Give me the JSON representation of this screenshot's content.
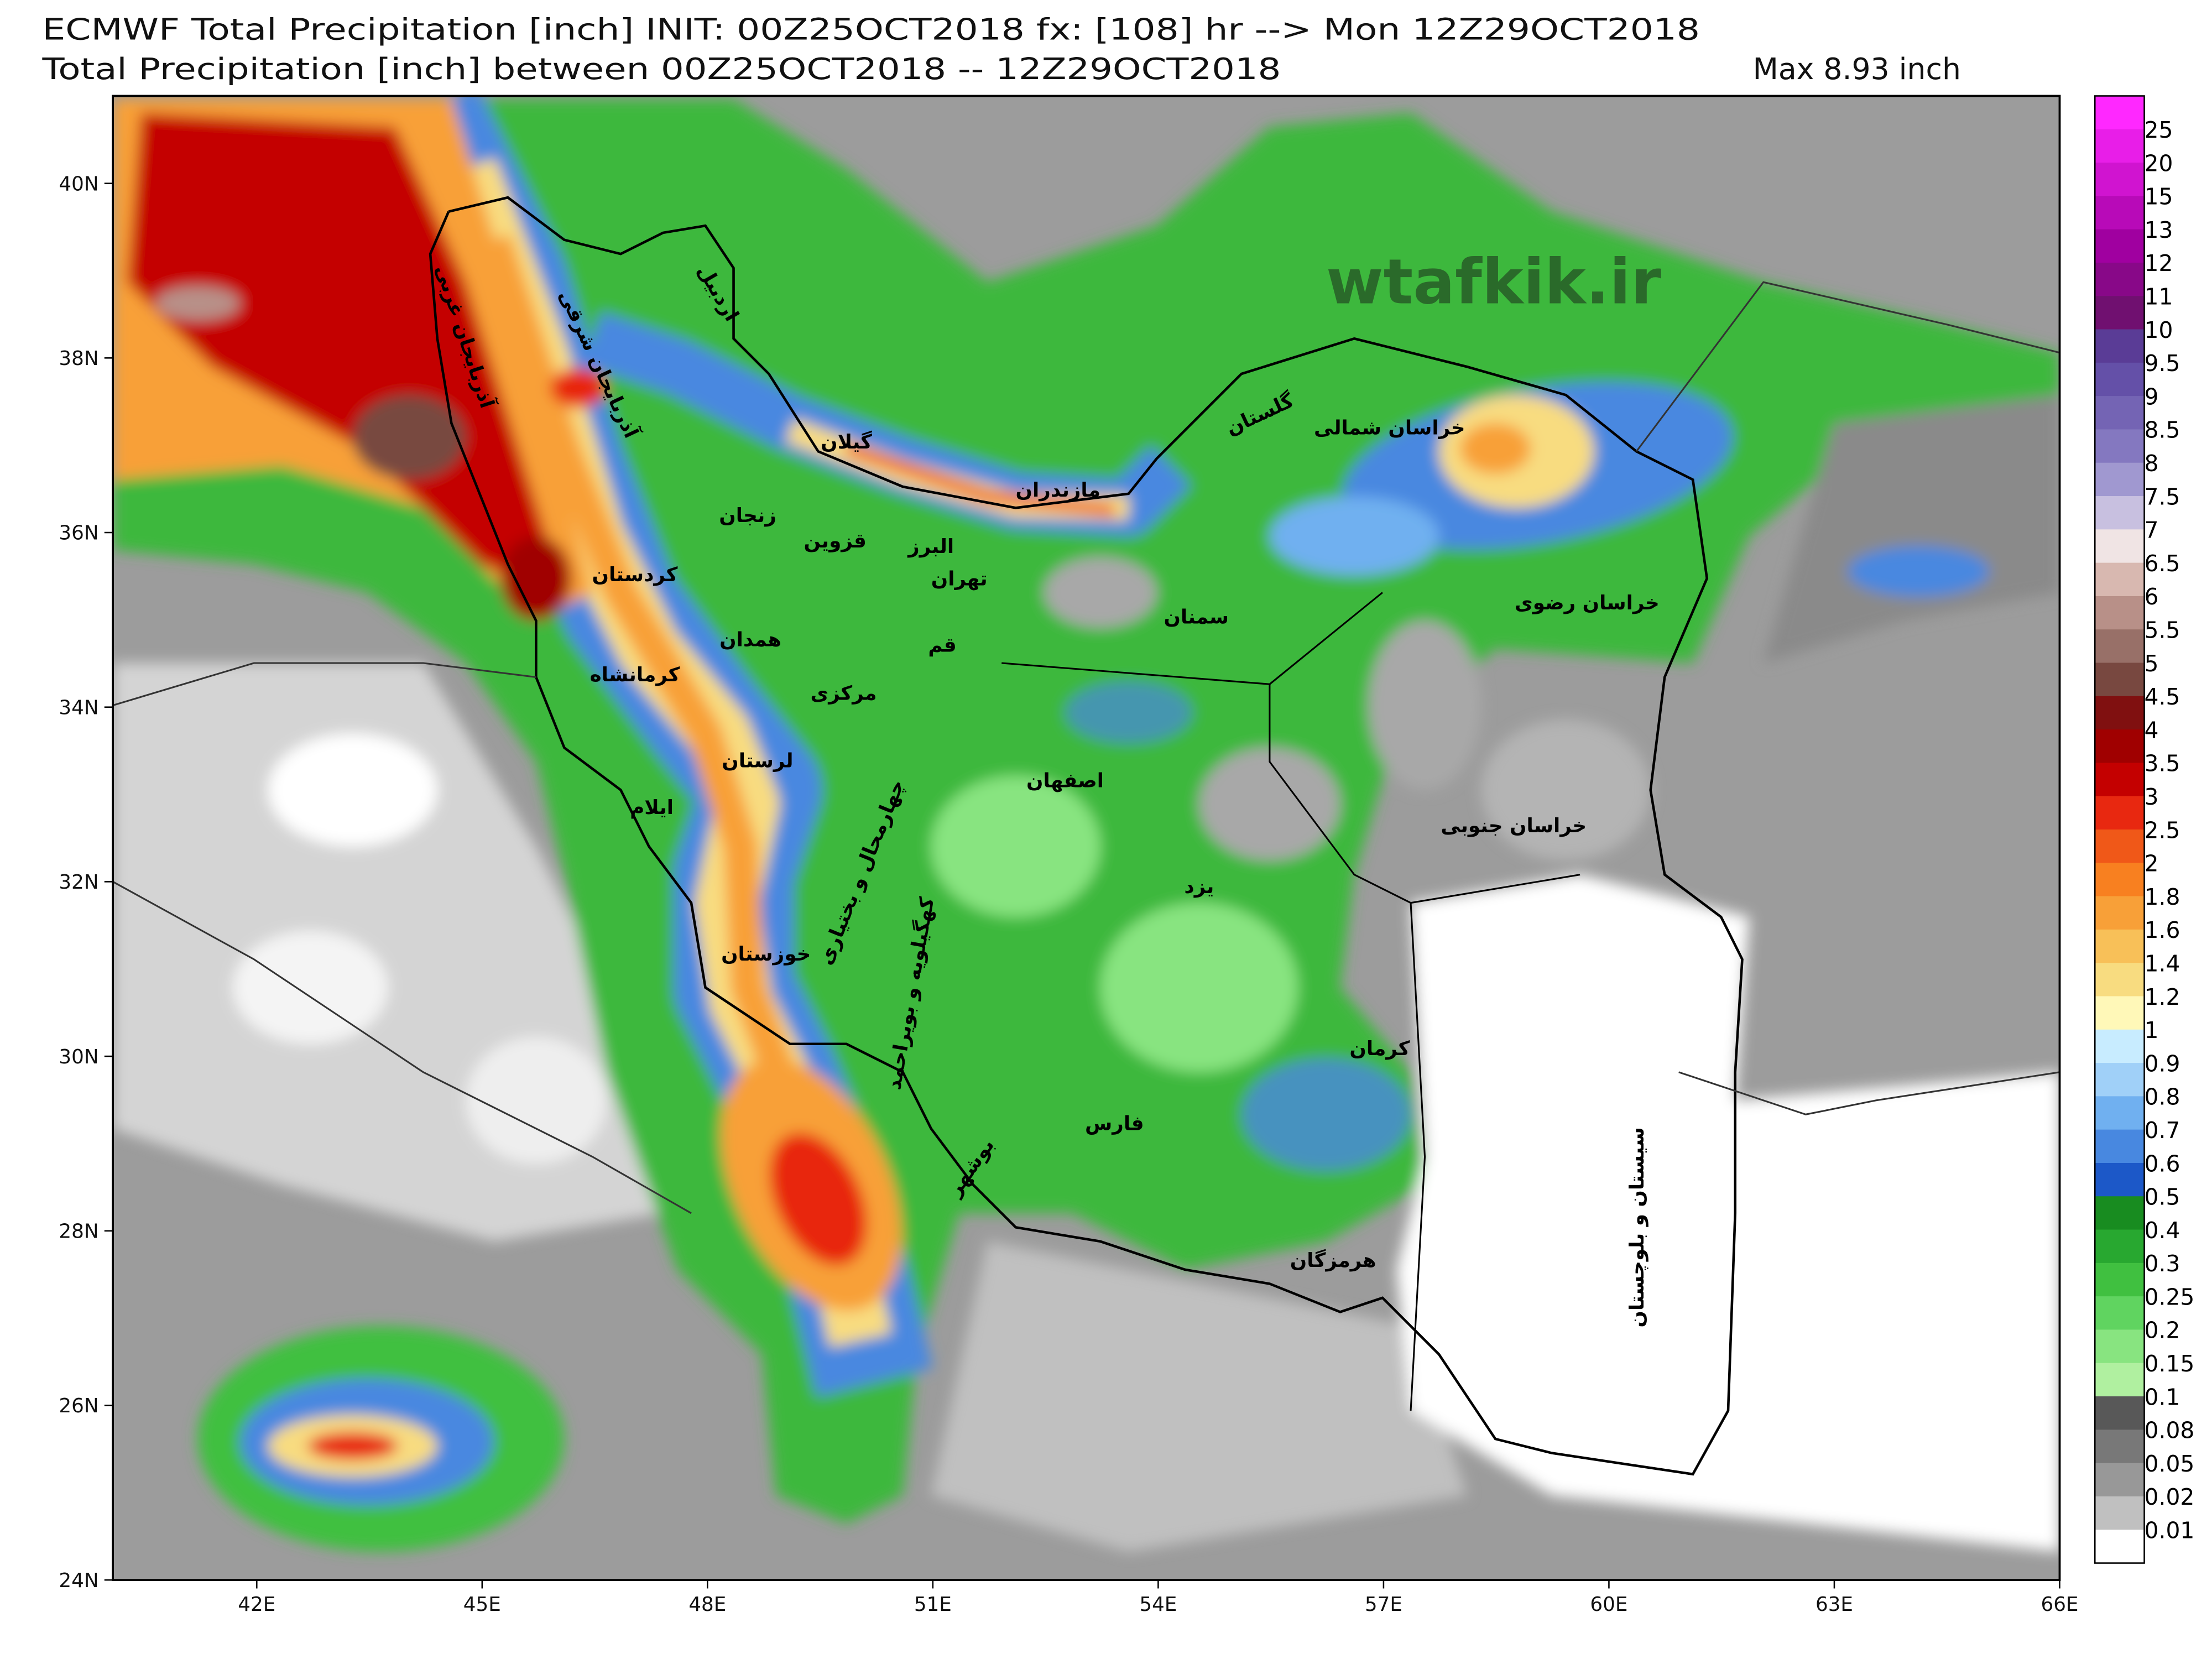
{
  "header": {
    "title": "ECMWF Total Precipitation [inch] INIT: 00Z25OCT2018 fx: [108] hr --> Mon 12Z29OCT2018",
    "subtitle": "Total Precipitation [inch] between 00Z25OCT2018 -- 12Z29OCT2018",
    "max": "Max 8.93 inch"
  },
  "watermark": "wtafkik.ir",
  "axes": {
    "lat": [
      "40N",
      "38N",
      "36N",
      "34N",
      "32N",
      "30N",
      "28N",
      "26N",
      "24N"
    ],
    "lon": [
      "42E",
      "45E",
      "48E",
      "51E",
      "54E",
      "57E",
      "60E",
      "63E",
      "66E"
    ]
  },
  "regions": [
    "آذربایجان غربی",
    "آذربایجان شرقی",
    "اردبیل",
    "گیلان",
    "مازندران",
    "گلستان",
    "خراسان شمالی",
    "خراسان رضوی",
    "زنجان",
    "قزوین",
    "البرز",
    "تهران",
    "سمنان",
    "کردستان",
    "همدان",
    "قم",
    "مرکزی",
    "کرمانشاه",
    "لرستان",
    "اصفهان",
    "خراسان جنوبی",
    "ایلام",
    "چهارمحال و بختیاری",
    "یزد",
    "کهگیلویه و بویراحمد",
    "خوزستان",
    "کرمان",
    "فارس",
    "بوشهر",
    "سیستان و بلوچستان",
    "هرمزگان"
  ],
  "colorbar": {
    "labels": [
      "25",
      "20",
      "15",
      "13",
      "12",
      "11",
      "10",
      "9.5",
      "9",
      "8.5",
      "8",
      "7.5",
      "7",
      "6.5",
      "6",
      "5.5",
      "5",
      "4.5",
      "4",
      "3.5",
      "3",
      "2.5",
      "2",
      "1.8",
      "1.6",
      "1.4",
      "1.2",
      "1",
      "0.9",
      "0.8",
      "0.7",
      "0.6",
      "0.5",
      "0.4",
      "0.3",
      "0.25",
      "0.2",
      "0.15",
      "0.1",
      "0.08",
      "0.05",
      "0.02",
      "0.01"
    ],
    "colors": [
      "#ff28ff",
      "#e81ee8",
      "#d014d0",
      "#b80ab8",
      "#a000a0",
      "#880888",
      "#701070",
      "#5a3c96",
      "#6450a8",
      "#7464b4",
      "#8478c0",
      "#a098d0",
      "#c8c0e0",
      "#f0e4e4",
      "#d8b8b0",
      "#b89088",
      "#987068",
      "#784840",
      "#801010",
      "#a00000",
      "#c40000",
      "#e82810",
      "#f05818",
      "#f88020",
      "#f8a038",
      "#f8c058",
      "#f8dc80",
      "#fff8b8",
      "#c8ecff",
      "#a0d0f8",
      "#70b0f0",
      "#4888e0",
      "#1c58c8",
      "#188c20",
      "#28a830",
      "#40c040",
      "#60d460",
      "#88e480",
      "#b0f0a0",
      "#585858",
      "#787878",
      "#989898",
      "#c0c0c0",
      "#ffffff"
    ]
  }
}
